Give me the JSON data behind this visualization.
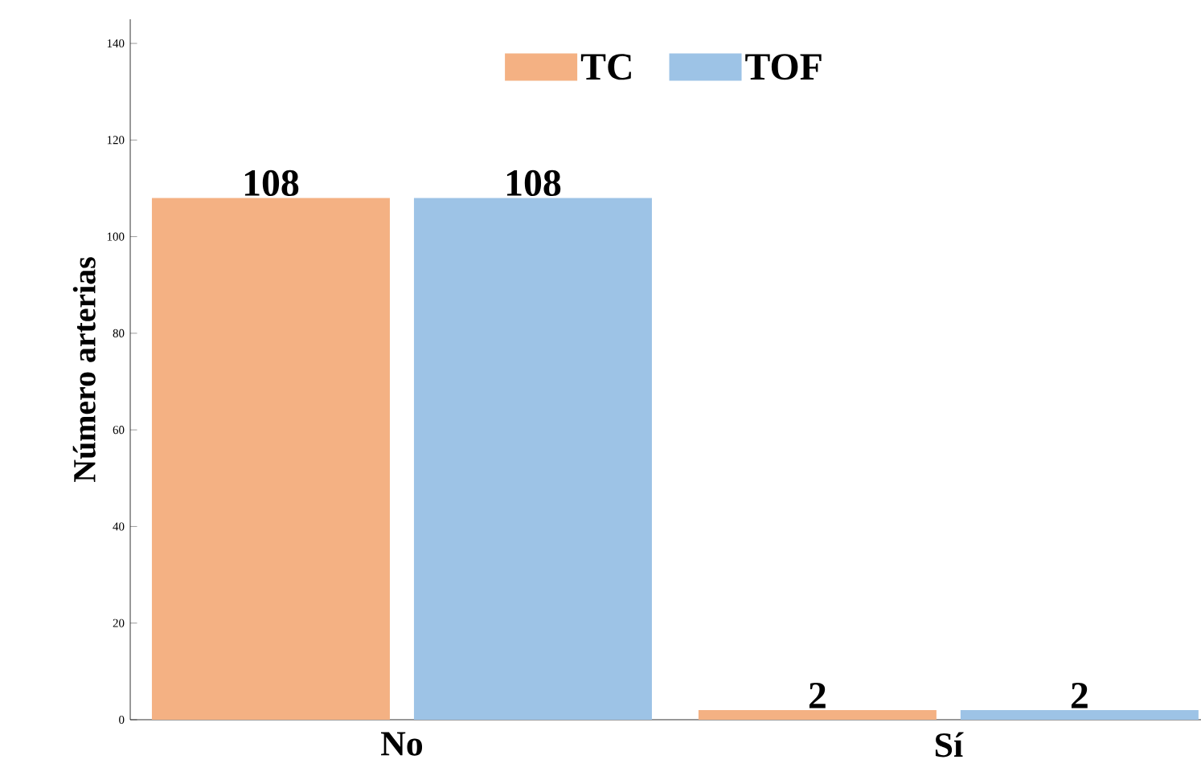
{
  "chart_data": {
    "type": "bar",
    "ylabel": "Número arterias",
    "categories": [
      "No",
      "Sí"
    ],
    "series": [
      {
        "name": "TC",
        "color": "#f4b183",
        "values": [
          108,
          2
        ]
      },
      {
        "name": "TOF",
        "color": "#9dc3e6",
        "values": [
          108,
          2
        ]
      }
    ],
    "ylim": [
      0,
      145
    ],
    "yticks": [
      0,
      20,
      40,
      60,
      80,
      100,
      120,
      140
    ],
    "data_labels": true,
    "legend": "top",
    "grid": false
  }
}
